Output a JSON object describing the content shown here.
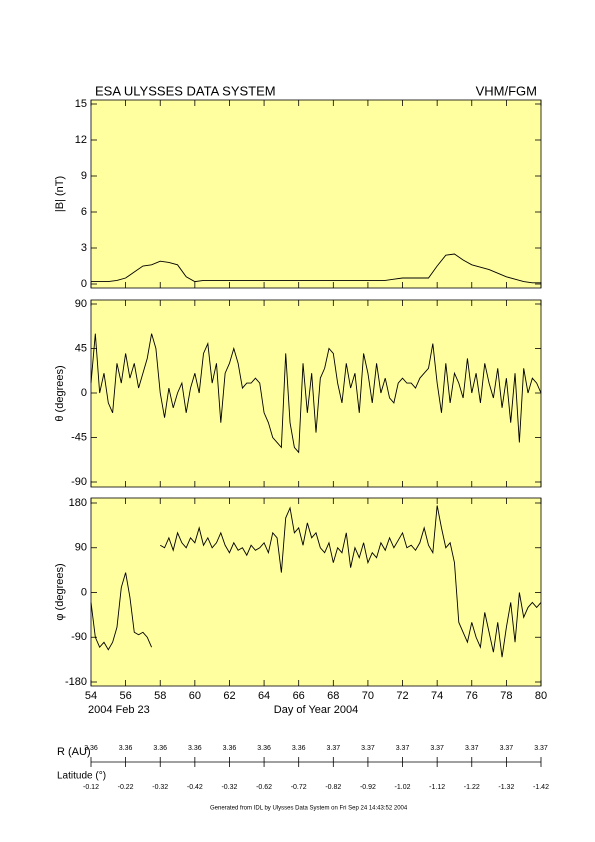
{
  "header": {
    "title": "ESA ULYSSES DATA SYSTEM",
    "instrument": "VHM/FGM"
  },
  "chart_data": [
    {
      "type": "line",
      "ylabel": "|B| (nT)",
      "background": "#ffffa0",
      "x": [
        54,
        54.5,
        55,
        55.5,
        56,
        56.5,
        57,
        57.5,
        58,
        58.5,
        59,
        59.5,
        60,
        60.5,
        61,
        61.5,
        62,
        62.5,
        63,
        63.5,
        64,
        64.5,
        65,
        65.5,
        66,
        66.5,
        67,
        67.5,
        68,
        68.5,
        69,
        69.5,
        70,
        70.5,
        71,
        71.5,
        72,
        72.5,
        73,
        73.5,
        74,
        74.5,
        75,
        75.5,
        76,
        76.5,
        77,
        77.5,
        78,
        78.5,
        79,
        79.5,
        80
      ],
      "series": [
        {
          "color": "#000000",
          "values": [
            0.2,
            0.2,
            0.2,
            0.3,
            0.5,
            1.0,
            1.5,
            1.6,
            1.9,
            1.8,
            1.6,
            0.6,
            0.2,
            0.3,
            0.3,
            0.3,
            0.3,
            0.3,
            0.3,
            0.3,
            0.3,
            0.3,
            0.3,
            0.3,
            0.3,
            0.3,
            0.3,
            0.3,
            0.3,
            0.3,
            0.3,
            0.3,
            0.3,
            0.3,
            0.3,
            0.4,
            0.5,
            0.5,
            0.5,
            0.5,
            1.5,
            2.4,
            2.5,
            2.0,
            1.6,
            1.4,
            1.2,
            0.9,
            0.6,
            0.4,
            0.2,
            0.1,
            0.1
          ]
        }
      ],
      "xlim": [
        54,
        80
      ],
      "xticks": [
        54,
        56,
        58,
        60,
        62,
        64,
        66,
        68,
        70,
        72,
        74,
        76,
        78,
        80
      ],
      "ylim": [
        0,
        15
      ],
      "yticks": [
        0,
        3,
        6,
        9,
        12,
        15
      ]
    },
    {
      "type": "line",
      "ylabel": "θ (degrees)",
      "background": "#ffffa0",
      "x": [
        54,
        54.25,
        54.5,
        54.75,
        55,
        55.25,
        55.5,
        55.75,
        56,
        56.25,
        56.5,
        56.75,
        57,
        57.25,
        57.5,
        57.75,
        58,
        58.25,
        58.5,
        58.75,
        59,
        59.25,
        59.5,
        59.75,
        60,
        60.25,
        60.5,
        60.75,
        61,
        61.25,
        61.5,
        61.75,
        62,
        62.25,
        62.5,
        62.75,
        63,
        63.25,
        63.5,
        63.75,
        64,
        64.25,
        64.5,
        64.75,
        65,
        65.25,
        65.5,
        65.75,
        66,
        66.25,
        66.5,
        66.75,
        67,
        67.25,
        67.5,
        67.75,
        68,
        68.25,
        68.5,
        68.75,
        69,
        69.25,
        69.5,
        69.75,
        70,
        70.25,
        70.5,
        70.75,
        71,
        71.25,
        71.5,
        71.75,
        72,
        72.25,
        72.5,
        72.75,
        73,
        73.25,
        73.5,
        73.75,
        74,
        74.25,
        74.5,
        74.75,
        75,
        75.25,
        75.5,
        75.75,
        76,
        76.25,
        76.5,
        76.75,
        77,
        77.25,
        77.5,
        77.75,
        78,
        78.25,
        78.5,
        78.75,
        79,
        79.25,
        79.5,
        79.75,
        80
      ],
      "series": [
        {
          "color": "#000000",
          "values": [
            10,
            60,
            0,
            20,
            -10,
            -20,
            30,
            10,
            40,
            15,
            30,
            5,
            20,
            35,
            60,
            45,
            0,
            -25,
            5,
            -15,
            0,
            10,
            -20,
            5,
            20,
            0,
            40,
            50,
            10,
            30,
            -30,
            20,
            30,
            45,
            30,
            5,
            10,
            10,
            15,
            10,
            -20,
            -30,
            -45,
            -50,
            -55,
            40,
            -30,
            -55,
            -60,
            30,
            -20,
            20,
            -40,
            15,
            25,
            45,
            40,
            10,
            -10,
            30,
            5,
            20,
            -20,
            40,
            20,
            -10,
            30,
            0,
            15,
            -5,
            -10,
            10,
            15,
            10,
            10,
            5,
            15,
            20,
            25,
            50,
            10,
            -20,
            30,
            -10,
            20,
            10,
            -5,
            35,
            0,
            20,
            -10,
            30,
            10,
            -5,
            25,
            -15,
            15,
            -30,
            20,
            -50,
            25,
            0,
            15,
            10,
            0
          ]
        }
      ],
      "xlim": [
        54,
        80
      ],
      "xticks": [
        54,
        56,
        58,
        60,
        62,
        64,
        66,
        68,
        70,
        72,
        74,
        76,
        78,
        80
      ],
      "ylim": [
        -90,
        90
      ],
      "yticks": [
        -90,
        -45,
        0,
        45,
        90
      ]
    },
    {
      "type": "line",
      "ylabel": "φ (degrees)",
      "background": "#ffffa0",
      "xlabel": "Day of Year 2004",
      "date_label": "2004 Feb 23",
      "x": [
        54,
        54.25,
        54.5,
        54.75,
        55,
        55.25,
        55.5,
        55.75,
        56,
        56.25,
        56.5,
        56.75,
        57,
        57.25,
        57.5,
        57.75,
        58,
        58.25,
        58.5,
        58.75,
        59,
        59.25,
        59.5,
        59.75,
        60,
        60.25,
        60.5,
        60.75,
        61,
        61.25,
        61.5,
        61.75,
        62,
        62.25,
        62.5,
        62.75,
        63,
        63.25,
        63.5,
        63.75,
        64,
        64.25,
        64.5,
        64.75,
        65,
        65.25,
        65.5,
        65.75,
        66,
        66.25,
        66.5,
        66.75,
        67,
        67.25,
        67.5,
        67.75,
        68,
        68.25,
        68.5,
        68.75,
        69,
        69.25,
        69.5,
        69.75,
        70,
        70.25,
        70.5,
        70.75,
        71,
        71.25,
        71.5,
        71.75,
        72,
        72.25,
        72.5,
        72.75,
        73,
        73.25,
        73.5,
        73.75,
        74,
        74.25,
        74.5,
        74.75,
        75,
        75.25,
        75.5,
        75.75,
        76,
        76.25,
        76.5,
        76.75,
        77,
        77.25,
        77.5,
        77.75,
        78,
        78.25,
        78.5,
        78.75,
        79,
        79.25,
        79.5,
        79.75,
        80
      ],
      "series": [
        {
          "color": "#000000",
          "values": [
            -20,
            -90,
            -110,
            -100,
            -115,
            -100,
            -70,
            10,
            40,
            -10,
            -80,
            -85,
            -80,
            -90,
            -110,
            null,
            95,
            90,
            110,
            85,
            120,
            100,
            90,
            110,
            100,
            130,
            95,
            110,
            90,
            100,
            120,
            95,
            80,
            100,
            85,
            90,
            75,
            95,
            85,
            90,
            100,
            80,
            120,
            110,
            40,
            150,
            170,
            120,
            130,
            95,
            140,
            110,
            120,
            90,
            80,
            100,
            60,
            90,
            80,
            120,
            50,
            90,
            70,
            100,
            60,
            80,
            70,
            100,
            85,
            110,
            90,
            105,
            120,
            90,
            95,
            85,
            100,
            130,
            95,
            80,
            175,
            130,
            90,
            100,
            60,
            -60,
            -80,
            -100,
            -60,
            -90,
            -110,
            -40,
            -80,
            -120,
            -60,
            -130,
            -70,
            -20,
            -100,
            0,
            -50,
            -30,
            -20,
            -30,
            -20
          ]
        }
      ],
      "xlim": [
        54,
        80
      ],
      "xticks": [
        54,
        56,
        58,
        60,
        62,
        64,
        66,
        68,
        70,
        72,
        74,
        76,
        78,
        80
      ],
      "ylim": [
        -180,
        180
      ],
      "yticks": [
        -180,
        -90,
        0,
        90,
        180
      ]
    }
  ],
  "orbit": {
    "r_label": "R (AU)",
    "r_values": [
      3.36,
      3.36,
      3.36,
      3.36,
      3.36,
      3.36,
      3.36,
      3.37,
      3.37,
      3.37,
      3.37,
      3.37,
      3.37,
      3.37
    ],
    "lat_label": "Latitude (°)",
    "lat_values": [
      -0.12,
      -0.22,
      -0.32,
      -0.42,
      -0.32,
      -0.62,
      -0.72,
      -0.82,
      -0.92,
      -1.02,
      -1.12,
      -1.22,
      -1.32,
      -1.42
    ]
  },
  "footer": "Generated from IDL by Ulysses Data System on Fri Sep 24 14:43:52 2004"
}
